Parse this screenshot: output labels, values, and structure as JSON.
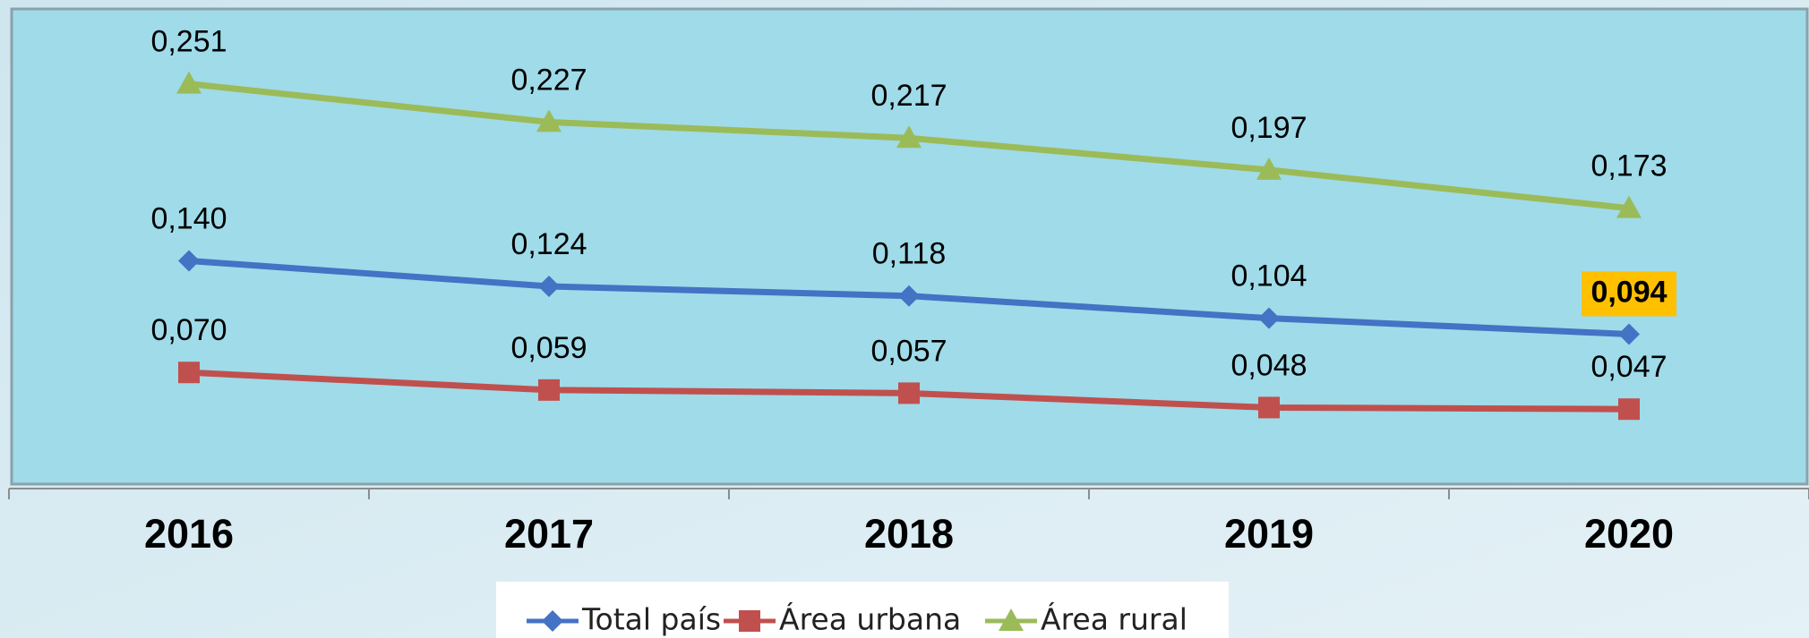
{
  "chart_data": {
    "type": "line",
    "categories": [
      "2016",
      "2017",
      "2018",
      "2019",
      "2020"
    ],
    "series": [
      {
        "name": "Total país",
        "color": "#4472c4",
        "values": [
          0.14,
          0.124,
          0.118,
          0.104,
          0.094
        ],
        "value_labels": [
          "0,140",
          "0,124",
          "0,118",
          "0,104",
          "0,094"
        ]
      },
      {
        "name": "Área urbana",
        "color": "#c0504d",
        "values": [
          0.07,
          0.059,
          0.057,
          0.048,
          0.047
        ],
        "value_labels": [
          "0,070",
          "0,059",
          "0,057",
          "0,048",
          "0,047"
        ]
      },
      {
        "name": "Área rural",
        "color": "#9bbb59",
        "values": [
          0.251,
          0.227,
          0.217,
          0.197,
          0.173
        ],
        "value_labels": [
          "0,251",
          "0,227",
          "0,217",
          "0,197",
          "0,173"
        ]
      }
    ]
  }
}
